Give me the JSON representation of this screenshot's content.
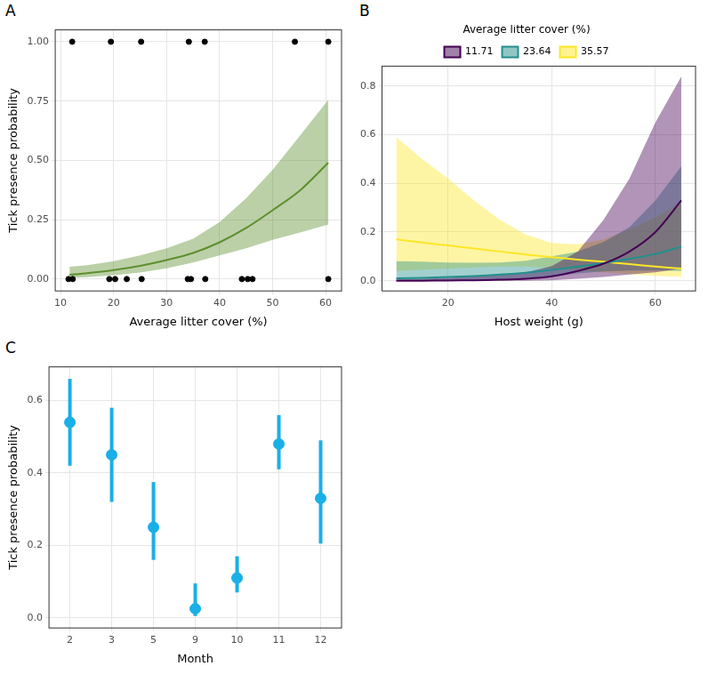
{
  "chart_data": [
    {
      "type": "line",
      "title": "A",
      "x_label": "Average litter cover (%)",
      "y_label": "Tick presence probability",
      "xlim": [
        9,
        63
      ],
      "ylim": [
        -0.05,
        1.05
      ],
      "xticks": [
        10,
        20,
        30,
        40,
        50,
        60
      ],
      "yticks": [
        {
          "value": 0,
          "label": "0.00"
        },
        {
          "value": 0.25,
          "label": "0.25"
        },
        {
          "value": 0.5,
          "label": "0.50"
        },
        {
          "value": 0.75,
          "label": "0.75"
        },
        {
          "value": 1,
          "label": "1.00"
        }
      ],
      "grid": true,
      "series": [
        {
          "type": "scatter",
          "color": "#000000",
          "x": [
            12.2,
            19.5,
            25.2,
            34.2,
            37.2,
            54.2,
            60.5,
            11.5,
            12.3,
            19.2,
            20.3,
            22.5,
            25.3,
            34.0,
            34.6,
            37.3,
            44.2,
            45.3,
            46.2,
            60.5
          ],
          "values": [
            1,
            1,
            1,
            1,
            1,
            1,
            1,
            0,
            0,
            0,
            0,
            0,
            0,
            0,
            0,
            0,
            0,
            0,
            0,
            0
          ]
        },
        {
          "type": "line",
          "color": "#5e8f2e",
          "x": [
            11.7,
            15,
            20,
            25,
            30,
            35,
            40,
            45,
            50,
            55,
            60.5
          ],
          "values": [
            0.018,
            0.025,
            0.038,
            0.056,
            0.08,
            0.11,
            0.155,
            0.215,
            0.29,
            0.37,
            0.49
          ],
          "lower": [
            0.005,
            0.008,
            0.016,
            0.028,
            0.045,
            0.07,
            0.1,
            0.13,
            0.165,
            0.195,
            0.23
          ],
          "upper": [
            0.052,
            0.058,
            0.075,
            0.1,
            0.13,
            0.17,
            0.24,
            0.34,
            0.46,
            0.6,
            0.755
          ]
        }
      ]
    },
    {
      "type": "line",
      "title": "B",
      "x_label": "Host weight (g)",
      "legend": "top",
      "legend_title": "Average litter cover (%)",
      "xlim": [
        7.25,
        67.75
      ],
      "ylim": [
        -0.042,
        0.882
      ],
      "xticks": [
        20,
        40,
        60
      ],
      "yticks": [
        {
          "value": 0,
          "label": "0.0"
        },
        {
          "value": 0.2,
          "label": "0.2"
        },
        {
          "value": 0.4,
          "label": "0.4"
        },
        {
          "value": 0.6,
          "label": "0.6"
        },
        {
          "value": 0.8,
          "label": "0.8"
        }
      ],
      "grid": true,
      "series": [
        {
          "name": "11.71",
          "color": "#440154",
          "x": [
            10,
            15,
            20,
            25,
            30,
            35,
            40,
            45,
            50,
            55,
            60,
            65
          ],
          "values": [
            0,
            0,
            0.001,
            0.002,
            0.004,
            0.008,
            0.018,
            0.04,
            0.07,
            0.12,
            0.2,
            0.33
          ],
          "lower": [
            0,
            0,
            0,
            0,
            0,
            0,
            0.002,
            0.008,
            0.015,
            0.025,
            0.035,
            0.05
          ],
          "upper": [
            0.005,
            0.008,
            0.012,
            0.018,
            0.025,
            0.035,
            0.06,
            0.12,
            0.25,
            0.42,
            0.65,
            0.84
          ]
        },
        {
          "name": "23.64",
          "color": "#21908c",
          "x": [
            10,
            15,
            20,
            25,
            30,
            35,
            40,
            45,
            50,
            55,
            60,
            65
          ],
          "values": [
            0.01,
            0.012,
            0.015,
            0.019,
            0.025,
            0.033,
            0.045,
            0.058,
            0.072,
            0.09,
            0.11,
            0.14
          ],
          "lower": [
            0.001,
            0.002,
            0.003,
            0.004,
            0.006,
            0.01,
            0.018,
            0.03,
            0.038,
            0.042,
            0.042,
            0.04
          ],
          "upper": [
            0.08,
            0.078,
            0.075,
            0.074,
            0.075,
            0.082,
            0.1,
            0.12,
            0.16,
            0.22,
            0.33,
            0.47
          ]
        },
        {
          "name": "35.57",
          "color": "#fde725",
          "x": [
            10,
            15,
            20,
            25,
            30,
            35,
            40,
            45,
            50,
            55,
            60,
            65
          ],
          "values": [
            0.17,
            0.157,
            0.145,
            0.132,
            0.12,
            0.108,
            0.097,
            0.087,
            0.078,
            0.068,
            0.058,
            0.05
          ],
          "lower": [
            0.04,
            0.045,
            0.05,
            0.055,
            0.058,
            0.058,
            0.052,
            0.045,
            0.035,
            0.027,
            0.02,
            0.016
          ],
          "upper": [
            0.59,
            0.5,
            0.42,
            0.33,
            0.25,
            0.19,
            0.155,
            0.15,
            0.17,
            0.21,
            0.26,
            0.32
          ]
        }
      ]
    },
    {
      "type": "scatter",
      "title": "C",
      "x_label": "Month",
      "y_label": "Tick presence probability",
      "categories": [
        "2",
        "3",
        "5",
        "9",
        "10",
        "11",
        "12"
      ],
      "values": [
        0.54,
        0.45,
        0.25,
        0.025,
        0.11,
        0.48,
        0.33
      ],
      "lower": [
        0.42,
        0.32,
        0.16,
        0.005,
        0.07,
        0.41,
        0.205
      ],
      "upper": [
        0.66,
        0.58,
        0.375,
        0.095,
        0.17,
        0.56,
        0.49
      ],
      "color": "#1aafe6",
      "ylim": [
        -0.028,
        0.693
      ],
      "yticks": [
        {
          "value": 0,
          "label": "0.0"
        },
        {
          "value": 0.2,
          "label": "0.2"
        },
        {
          "value": 0.4,
          "label": "0.4"
        },
        {
          "value": 0.6,
          "label": "0.6"
        }
      ],
      "grid": true
    }
  ]
}
